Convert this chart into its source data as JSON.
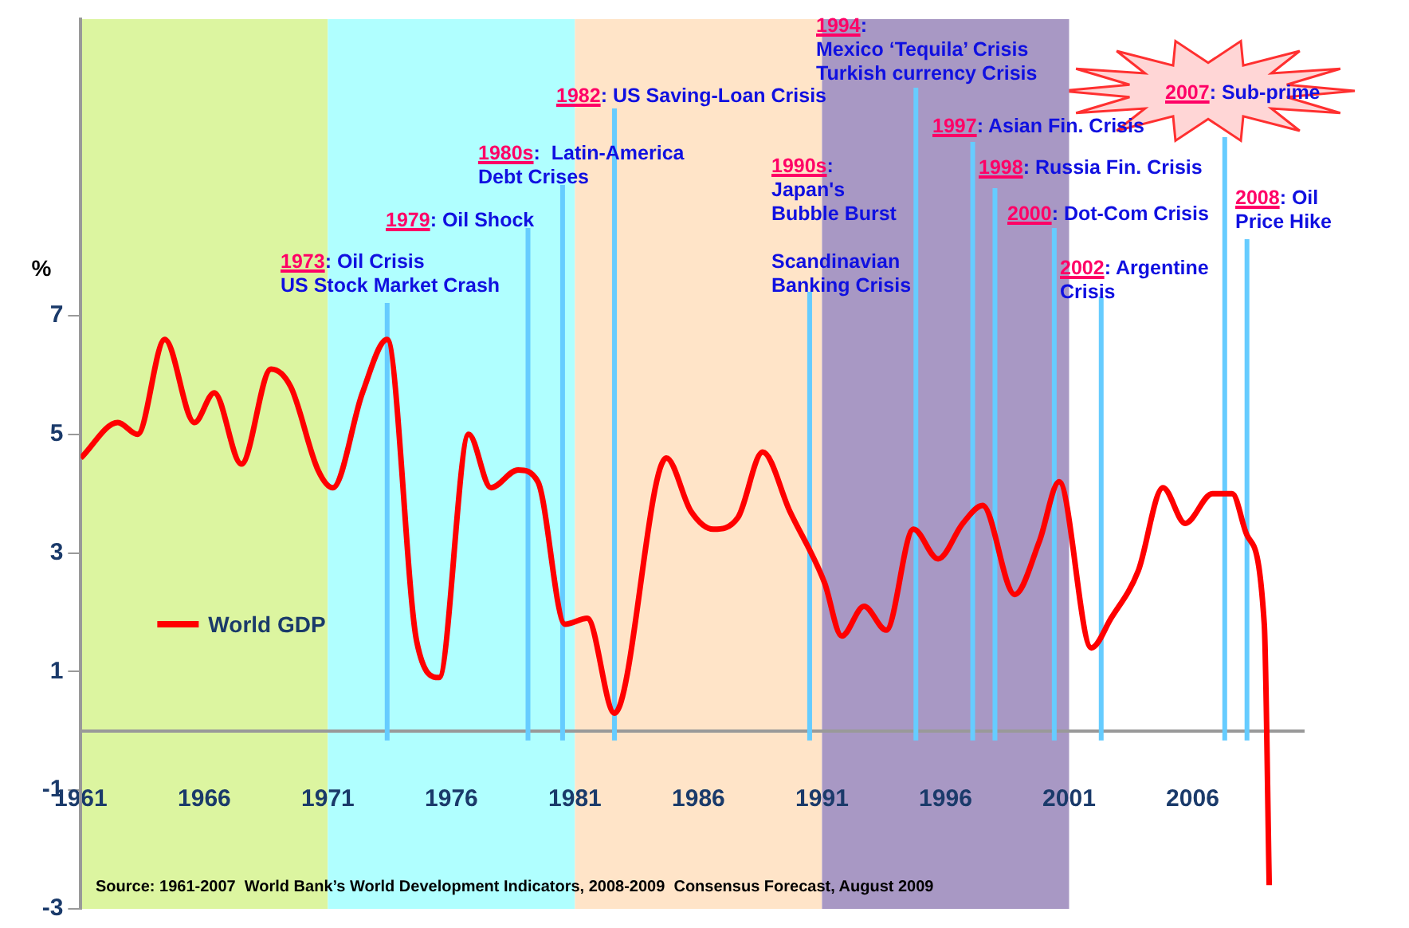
{
  "chart_data": {
    "type": "line",
    "ylabel": "%",
    "x": [
      1961,
      1962.5,
      1963.3,
      1964.4,
      1965.6,
      1966.4,
      1967.5,
      1968.7,
      1969.5,
      1970.6,
      1971.2,
      1972.4,
      1973.4,
      1974.6,
      1975.5,
      1976.7,
      1977.6,
      1978.7,
      1979.5,
      1980.6,
      1981.5,
      1982.6,
      1984.7,
      1985.7,
      1986.6,
      1987.6,
      1988.6,
      1989.7,
      1991.1,
      1991.8,
      1992.7,
      1993.6,
      1994.7,
      1995.7,
      1996.7,
      1997.5,
      1998.8,
      1999.8,
      2000.6,
      2001.9,
      2002.7,
      2003.8,
      2004.8,
      2005.7,
      2006.8,
      2007.6,
      2008.2,
      2008.9,
      2009.1
    ],
    "series": [
      {
        "name": "World GDP",
        "color": "#ff0000",
        "values": [
          4.6,
          5.2,
          5.0,
          6.6,
          5.2,
          5.7,
          4.5,
          6.1,
          5.8,
          4.4,
          4.1,
          5.7,
          6.6,
          1.5,
          0.9,
          5.0,
          4.1,
          4.4,
          4.2,
          1.8,
          1.9,
          0.3,
          4.6,
          3.7,
          3.4,
          3.6,
          4.7,
          3.7,
          2.5,
          1.6,
          2.1,
          1.7,
          3.4,
          2.9,
          3.5,
          3.8,
          2.3,
          3.2,
          4.2,
          1.4,
          1.9,
          2.7,
          4.1,
          3.5,
          4.0,
          4.0,
          3.3,
          1.8,
          -2.6
        ]
      }
    ],
    "xlim": [
      1961,
      2010.5
    ],
    "xticks": [
      1961,
      1966,
      1971,
      1976,
      1981,
      1986,
      1991,
      1996,
      2001,
      2006
    ],
    "ylim": [
      -3,
      12
    ],
    "yticks": [
      7,
      5,
      3,
      1,
      -1,
      -3
    ],
    "grid": false,
    "legend": "left",
    "marker": "none",
    "line_style": "solid",
    "bands": [
      {
        "axis": "x",
        "from": 1961,
        "to": 1971,
        "color": "#dcf5a0"
      },
      {
        "axis": "x",
        "from": 1971,
        "to": 1981,
        "color": "#b0ffff"
      },
      {
        "axis": "x",
        "from": 1981,
        "to": 1991,
        "color": "#ffe4c8"
      },
      {
        "axis": "x",
        "from": 1991,
        "to": 2001,
        "color": "#a898c4"
      }
    ],
    "ref_lines": [
      {
        "axis": "x",
        "value": 1973.4,
        "label": "1973: Oil Crisis\nUS Stock Market Crash",
        "color": "#66ccff"
      },
      {
        "axis": "x",
        "value": 1979.1,
        "label": "1979: Oil Shock",
        "color": "#66ccff"
      },
      {
        "axis": "x",
        "value": 1980.5,
        "label": "1980s:  Latin-America\nDebt Crises",
        "color": "#66ccff"
      },
      {
        "axis": "x",
        "value": 1982.6,
        "label": "1982: US Saving-Loan Crisis",
        "color": "#66ccff"
      },
      {
        "axis": "x",
        "value": 1990.5,
        "label": "1990s:\nJapan's\nBubble Burst\n\nScandinavian\nBanking Crisis",
        "color": "#66ccff"
      },
      {
        "axis": "x",
        "value": 1994.8,
        "label": "1994:\nMexico ‘Tequila’ Crisis\nTurkish currency Crisis",
        "color": "#66ccff"
      },
      {
        "axis": "x",
        "value": 1997.1,
        "label": "1997: Asian Fin. Crisis",
        "color": "#66ccff"
      },
      {
        "axis": "x",
        "value": 1998.0,
        "label": "1998: Russia Fin. Crisis",
        "color": "#66ccff"
      },
      {
        "axis": "x",
        "value": 2000.4,
        "label": "2000: Dot-Com Crisis",
        "color": "#66ccff"
      },
      {
        "axis": "x",
        "value": 2002.3,
        "label": "2002: Argentine\nCrisis",
        "color": "#66ccff"
      },
      {
        "axis": "x",
        "value": 2007.3,
        "label": "2007: Sub-prime",
        "color": "#66ccff"
      },
      {
        "axis": "x",
        "value": 2008.2,
        "label": "2008: Oil\nPrice Hike",
        "color": "#66ccff"
      }
    ],
    "annotations": [
      "Source: 1961-2007  World Bank’s World Development Indicators, 2008-2009  Consensus Forecast, August 2009"
    ]
  }
}
